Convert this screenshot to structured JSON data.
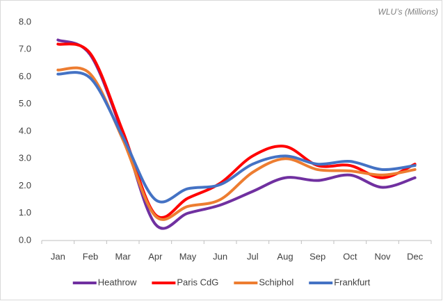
{
  "chart_data": {
    "type": "line",
    "annotation": "WLU’s (Millions)",
    "categories": [
      "Jan",
      "Feb",
      "Mar",
      "Apr",
      "May",
      "Jun",
      "Jul",
      "Aug",
      "Sep",
      "Oct",
      "Nov",
      "Dec"
    ],
    "series": [
      {
        "name": "Heathrow",
        "color": "#7030a0",
        "values": [
          7.35,
          6.8,
          3.9,
          0.6,
          1.0,
          1.3,
          1.8,
          2.3,
          2.2,
          2.4,
          1.95,
          2.3
        ]
      },
      {
        "name": "Paris CdG",
        "color": "#ff0000",
        "values": [
          7.2,
          6.85,
          4.0,
          0.95,
          1.55,
          2.1,
          3.1,
          3.45,
          2.75,
          2.75,
          2.3,
          2.8
        ]
      },
      {
        "name": "Schiphol",
        "color": "#ed7d31",
        "values": [
          6.25,
          6.1,
          3.7,
          0.9,
          1.25,
          1.5,
          2.5,
          3.0,
          2.6,
          2.55,
          2.4,
          2.6
        ]
      },
      {
        "name": "Frankfurt",
        "color": "#4472c4",
        "values": [
          6.1,
          5.95,
          3.8,
          1.5,
          1.9,
          2.05,
          2.8,
          3.1,
          2.8,
          2.9,
          2.6,
          2.75
        ]
      }
    ],
    "ylim": [
      0,
      8
    ],
    "yticks": [
      {
        "value": 0,
        "label": "0.0"
      },
      {
        "value": 1,
        "label": "1.0"
      },
      {
        "value": 2,
        "label": "2.0"
      },
      {
        "value": 3,
        "label": "3.0"
      },
      {
        "value": 4,
        "label": "4.0"
      },
      {
        "value": 5,
        "label": "5.0"
      },
      {
        "value": 6,
        "label": "6.0"
      },
      {
        "value": 7,
        "label": "7.0"
      },
      {
        "value": 8,
        "label": "8.0"
      }
    ],
    "grid": false,
    "legend": "bottom",
    "smooth": true
  }
}
